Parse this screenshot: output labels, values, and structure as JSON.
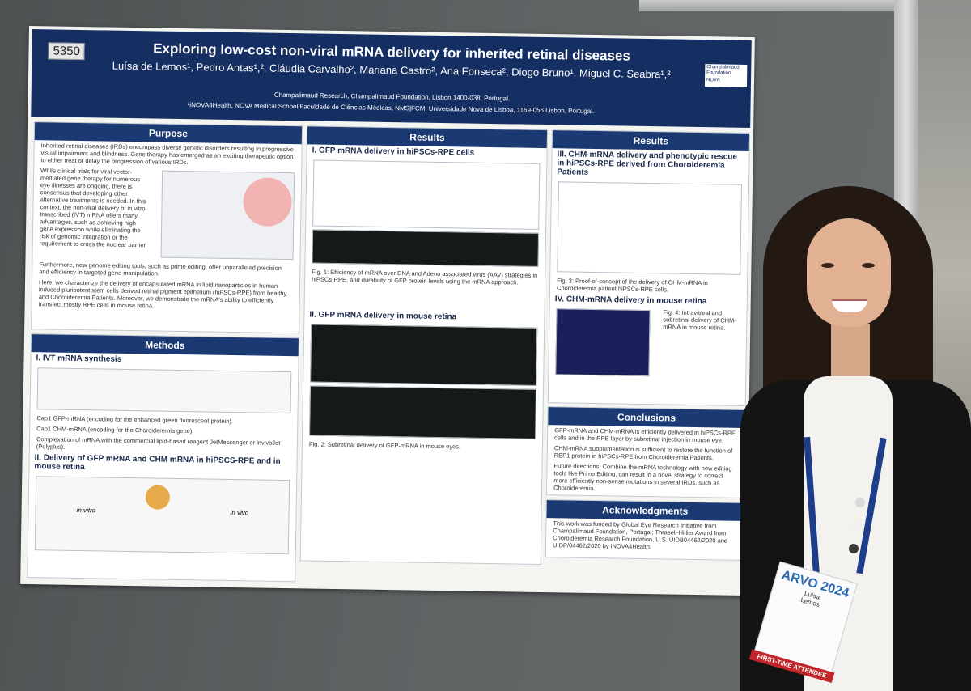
{
  "poster": {
    "id": "5350",
    "title": "Exploring low-cost non-viral mRNA delivery for inherited retinal diseases",
    "authors": "Luísa de Lemos¹, Pedro Antas¹,², Cláudia Carvalho², Mariana Castro², Ana Fonseca², Diogo Bruno¹, Miguel C. Seabra¹,²",
    "affiliation1": "¹Champalimaud Research, Champalimaud Foundation, Lisbon 1400-038, Portugal.",
    "affiliation2": "²iNOVA4Health, NOVA Medical School|Faculdade de Ciências Médicas, NMS|FCM, Universidade Nova de Lisboa, 1169-056 Lisbon, Portugal.",
    "logo_line1": "Champalimaud Foundation",
    "logo_line2": "NOVA",
    "purpose": {
      "heading": "Purpose",
      "p1": "Inherited retinal diseases (IRDs) encompass diverse genetic disorders resulting in progressive visual impairment and blindness. Gene therapy has emerged as an exciting therapeutic option to either treat or delay the progression of various IRDs.",
      "p2": "While clinical trials for viral vector-mediated gene therapy for numerous eye illnesses are ongoing, there is consensus that developing other alternative treatments is needed. In this context, the non-viral delivery of in vitro transcribed (IVT) mRNA offers many advantages, such as achieving high gene expression while eliminating the risk of genomic integration or the requirement to cross the nuclear barrier.",
      "p3": "Furthermore, new genome editing tools, such as prime editing, offer unparalleled precision and efficiency in targeted gene manipulation.",
      "p4": "Here, we characterize the delivery of encapsulated mRNA in lipid nanoparticles in human induced pluripotent stem cells derived retinal pigment epithelium (hiPSCs-RPE) from healthy and Choroideremia Patients. Moreover, we demonstrate the mRNA's ability to efficiently transfect mostly RPE cells in mouse retina."
    },
    "methods": {
      "heading": "Methods",
      "sub1": "I. IVT mRNA synthesis",
      "bullet1": "Cap1 GFP-mRNA (encoding for the enhanced green fluorescent protein).",
      "bullet2": "Cap1 CHM-mRNA (encoding for the Choroideremia gene).",
      "bullet3": "Complexation of mRNA with the commercial lipid-based reagent JetMessenger or invivoJet (Polyplus).",
      "sub2": "II. Delivery of GFP mRNA and CHM mRNA in hiPSCS-RPE and in mouse retina",
      "invitro": "in vitro",
      "invivo": "in vivo"
    },
    "results1": {
      "heading": "Results",
      "sub1": "I. GFP mRNA delivery in hiPSCs-RPE cells",
      "fig1": "Fig. 1: Efficiency of mRNA over DNA and Adeno associated virus (AAV) strategies in hiPSCs-RPE, and durability of GFP protein levels using the mRNA approach.",
      "sub2": "II. GFP mRNA delivery in mouse retina",
      "fig2": "Fig. 2: Subretinal delivery of GFP-mRNA in mouse eyes."
    },
    "results2": {
      "heading": "Results",
      "sub1": "III. CHM-mRNA delivery and phenotypic rescue in hiPSCs-RPE derived from Choroideremia Patients",
      "fig3": "Fig. 3: Proof-of-concept of the delivery of CHM-mRNA in Choroideremia patient hiPSCs-RPE cells.",
      "sub2": "IV. CHM-mRNA delivery in mouse retina",
      "fig4": "Fig. 4: Intravitreal and subretinal delivery of CHM-mRNA in mouse retina."
    },
    "conclusions": {
      "heading": "Conclusions",
      "c1": "GFP-mRNA and CHM-mRNA is efficiently delivered in hiPSCs-RPE cells and in the RPE layer by subretinal injection in mouse eye.",
      "c2": "CHM-mRNA supplementation is sufficient to restore the function of REP1 protein in hiPSCs-RPE from Choroideremia Patients.",
      "c3": "Future directions: Combine the mRNA technology with new editing tools like Prime Editing, can result in a novel strategy to correct more efficiently non-sense mutations in several IRDs, such as Choroideremia."
    },
    "acknowledgments": {
      "heading": "Acknowledgments",
      "text": "This work was funded by Global Eye Research Initiative from Champalimaud Foundation, Portugal; Thrasell-Hillier Award from Choroideremia Research Foundation, U.S. UIDB04462/2020 and UIDP/04462/2020 by iNOVA4Health."
    }
  },
  "badge": {
    "event": "ARVO 2024",
    "name_first": "Luísa",
    "name_last": "Lemos",
    "ribbon": "FIRST-TIME ATTENDEE"
  },
  "colors": {
    "banner": "#152f63",
    "section_head": "#1b3a73",
    "ribbon": "#c0262a"
  }
}
